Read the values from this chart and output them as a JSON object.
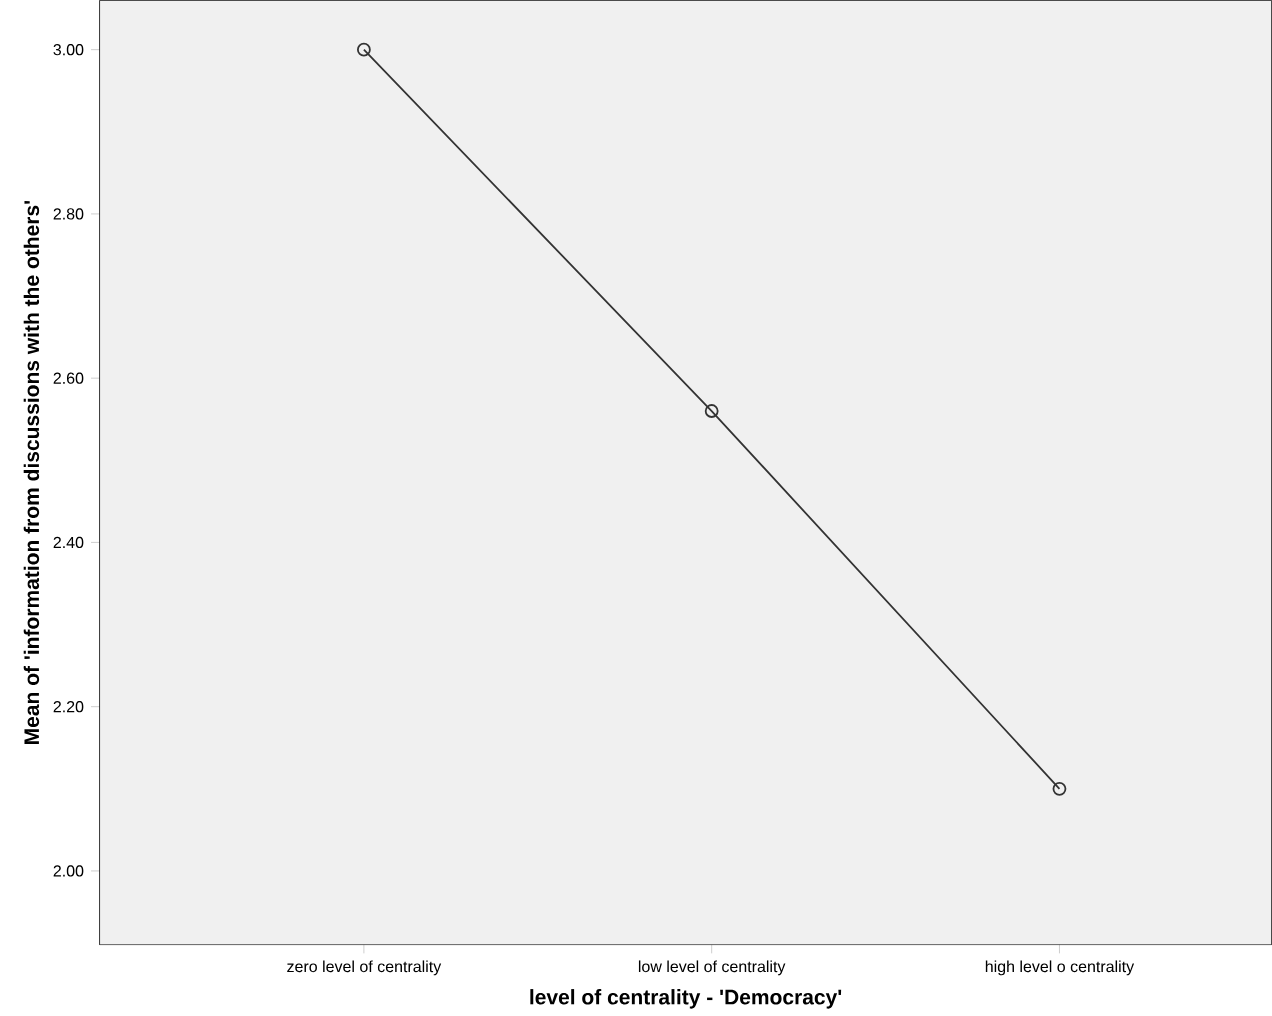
{
  "chart_data": {
    "type": "line",
    "xlabel": "level of centrality - 'Democracy'",
    "ylabel": "Mean of 'information from discussions with the others'",
    "categories": [
      "zero level of centrality",
      "low level of centrality",
      "high level o centrality"
    ],
    "values": [
      3.0,
      2.56,
      2.1
    ],
    "color": "#333333",
    "marker": "circle",
    "line_style": "solid",
    "ylim": [
      1.91,
      3.06
    ],
    "yticks": [
      {
        "value": 2.0,
        "label": "2.00"
      },
      {
        "value": 2.2,
        "label": "2.20"
      },
      {
        "value": 2.4,
        "label": "2.40"
      },
      {
        "value": 2.6,
        "label": "2.60"
      },
      {
        "value": 2.8,
        "label": "2.80"
      },
      {
        "value": 3.0,
        "label": "3.00"
      }
    ]
  }
}
